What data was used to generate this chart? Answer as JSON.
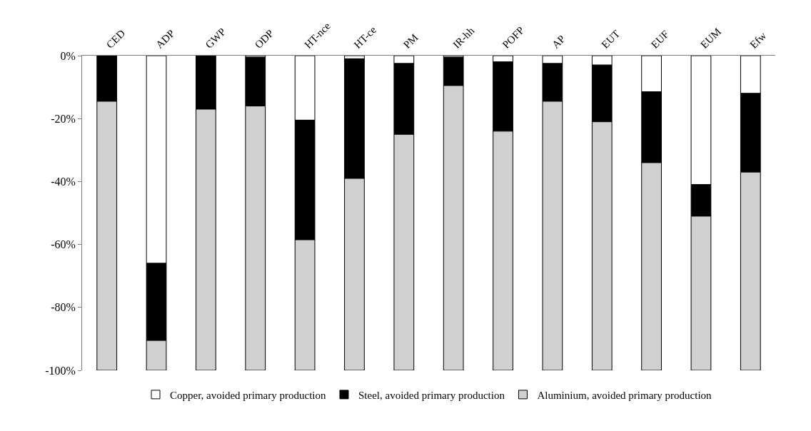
{
  "chart_data": {
    "type": "bar",
    "stacked": true,
    "categories": [
      "CED",
      "ADP",
      "GWP",
      "ODP",
      "HT-nce",
      "HT-ce",
      "PM",
      "IR-hh",
      "POFP",
      "AP",
      "EUT",
      "EUF",
      "EUM",
      "Efw"
    ],
    "series": [
      {
        "name": "Copper, avoided primary production",
        "color": "#ffffff",
        "values": [
          0,
          -66,
          0,
          -0.5,
          -20.5,
          -1,
          -2.5,
          -0.5,
          -2,
          -2.5,
          -3,
          -11.5,
          -41,
          -12
        ]
      },
      {
        "name": "Steel, avoided primary production",
        "color": "#000000",
        "values": [
          -14.5,
          -24.5,
          -17,
          -15.5,
          -38,
          -38,
          -22.5,
          -9,
          -22,
          -12,
          -18,
          -22.5,
          -10,
          -25
        ]
      },
      {
        "name": "Aluminium, avoided primary production",
        "color": "#d0d0d0",
        "values": [
          -85.5,
          -9.5,
          -83,
          -84,
          -41.5,
          -61,
          -75,
          -90.5,
          -76,
          -85.5,
          -79,
          -66,
          -49,
          -63
        ]
      }
    ],
    "ylim": [
      -100,
      0
    ],
    "yticks": [
      {
        "value": -100,
        "label": "-100%"
      },
      {
        "value": -80,
        "label": "-80%"
      },
      {
        "value": -60,
        "label": "-60%"
      },
      {
        "value": -40,
        "label": "-40%"
      },
      {
        "value": -20,
        "label": "-20%"
      },
      {
        "value": 0,
        "label": "0%"
      }
    ],
    "grid": false,
    "legend": "bottom"
  }
}
